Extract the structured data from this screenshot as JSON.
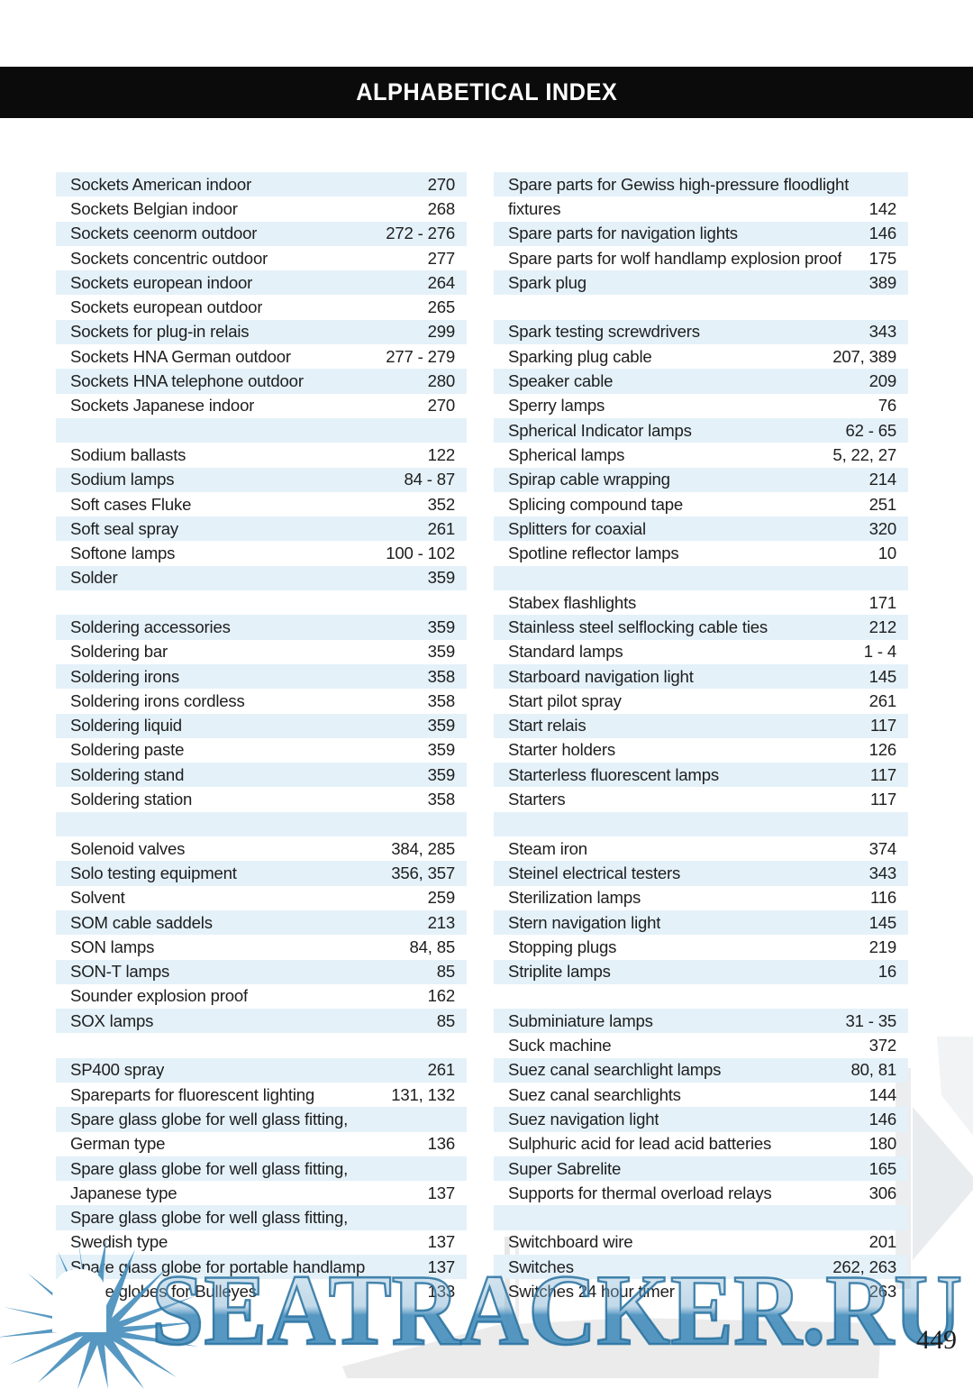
{
  "header": {
    "title": "ALPHABETICAL INDEX"
  },
  "page_number": "449",
  "watermark": {
    "text": "SEATRACKER.RU",
    "starburst_icon": "sun-starburst"
  },
  "colors": {
    "header_bg": "#0b0b0b",
    "stripe_blue": "#e4f1f9",
    "text": "#1e1e1e",
    "watermark_blue": "#4d92bf",
    "watermark_outline": "#28719f",
    "background_gray": "#ebedee"
  },
  "index": {
    "left_column": {
      "rows": [
        {
          "label": "Sockets American indoor",
          "pages": "270"
        },
        {
          "label": "Sockets Belgian indoor",
          "pages": "268"
        },
        {
          "label": "Sockets ceenorm outdoor",
          "pages": "272 - 276"
        },
        {
          "label": "Sockets concentric outdoor",
          "pages": "277"
        },
        {
          "label": "Sockets european indoor",
          "pages": "264"
        },
        {
          "label": "Sockets european outdoor",
          "pages": "265"
        },
        {
          "label": "Sockets for plug-in relais",
          "pages": "299"
        },
        {
          "label": "Sockets HNA German outdoor",
          "pages": "277 - 279"
        },
        {
          "label": "Sockets HNA telephone outdoor",
          "pages": "280"
        },
        {
          "label": "Sockets Japanese indoor",
          "pages": "270"
        },
        {
          "label": "",
          "pages": ""
        },
        {
          "label": "Sodium ballasts",
          "pages": "122"
        },
        {
          "label": "Sodium lamps",
          "pages": "84 - 87"
        },
        {
          "label": "Soft cases Fluke",
          "pages": "352"
        },
        {
          "label": "Soft seal spray",
          "pages": "261"
        },
        {
          "label": "Softone lamps",
          "pages": "100 - 102"
        },
        {
          "label": "Solder",
          "pages": "359"
        },
        {
          "label": "",
          "pages": ""
        },
        {
          "label": "Soldering accessories",
          "pages": "359"
        },
        {
          "label": "Soldering bar",
          "pages": "359"
        },
        {
          "label": "Soldering irons",
          "pages": "358"
        },
        {
          "label": "Soldering irons cordless",
          "pages": "358"
        },
        {
          "label": "Soldering liquid",
          "pages": "359"
        },
        {
          "label": "Soldering paste",
          "pages": "359"
        },
        {
          "label": "Soldering stand",
          "pages": "359"
        },
        {
          "label": "Soldering station",
          "pages": "358"
        },
        {
          "label": "",
          "pages": ""
        },
        {
          "label": "Solenoid valves",
          "pages": "384, 285"
        },
        {
          "label": "Solo testing equipment",
          "pages": "356, 357"
        },
        {
          "label": "Solvent",
          "pages": "259"
        },
        {
          "label": "SOM cable saddels",
          "pages": "213"
        },
        {
          "label": "SON lamps",
          "pages": "84, 85"
        },
        {
          "label": "SON-T lamps",
          "pages": "85"
        },
        {
          "label": "Sounder explosion proof",
          "pages": "162"
        },
        {
          "label": "SOX lamps",
          "pages": "85"
        },
        {
          "label": "",
          "pages": ""
        },
        {
          "label": "SP400 spray",
          "pages": "261"
        },
        {
          "label": "Spareparts for fluorescent lighting",
          "pages": "131, 132"
        },
        {
          "label": "Spare glass globe for well glass fitting,",
          "pages": ""
        },
        {
          "label": "German type",
          "pages": "136"
        },
        {
          "label": "Spare glass globe for well glass fitting,",
          "pages": ""
        },
        {
          "label": "Japanese type",
          "pages": "137"
        },
        {
          "label": "Spare glass globe for well glass fitting,",
          "pages": ""
        },
        {
          "label": "Swedish type",
          "pages": "137"
        },
        {
          "label": "Spare glass globe for portable handlamp",
          "pages": "137"
        },
        {
          "label": "Spare globes for Bulleyes",
          "pages": "133"
        }
      ]
    },
    "right_column": {
      "rows": [
        {
          "label": "Spare parts for Gewiss high-pressure floodlight",
          "pages": ""
        },
        {
          "label": "fixtures",
          "pages": "142"
        },
        {
          "label": "Spare parts for navigation lights",
          "pages": "146"
        },
        {
          "label": "Spare parts for wolf handlamp explosion proof",
          "pages": "175"
        },
        {
          "label": "Spark plug",
          "pages": "389"
        },
        {
          "label": "",
          "pages": ""
        },
        {
          "label": "Spark testing screwdrivers",
          "pages": "343"
        },
        {
          "label": "Sparking plug cable",
          "pages": "207, 389"
        },
        {
          "label": "Speaker cable",
          "pages": "209"
        },
        {
          "label": "Sperry lamps",
          "pages": "76"
        },
        {
          "label": "Spherical Indicator lamps",
          "pages": "62 - 65"
        },
        {
          "label": "Spherical lamps",
          "pages": "5, 22, 27"
        },
        {
          "label": "Spirap cable wrapping",
          "pages": "214"
        },
        {
          "label": "Splicing compound tape",
          "pages": "251"
        },
        {
          "label": "Splitters for coaxial",
          "pages": "320"
        },
        {
          "label": "Spotline reflector lamps",
          "pages": "10"
        },
        {
          "label": "",
          "pages": ""
        },
        {
          "label": "Stabex flashlights",
          "pages": "171"
        },
        {
          "label": "Stainless steel selflocking cable ties",
          "pages": "212"
        },
        {
          "label": "Standard lamps",
          "pages": "1 - 4"
        },
        {
          "label": "Starboard navigation light",
          "pages": "145"
        },
        {
          "label": "Start pilot spray",
          "pages": "261"
        },
        {
          "label": "Start relais",
          "pages": "117"
        },
        {
          "label": "Starter holders",
          "pages": "126"
        },
        {
          "label": "Starterless fluorescent lamps",
          "pages": "117"
        },
        {
          "label": "Starters",
          "pages": "117"
        },
        {
          "label": "",
          "pages": ""
        },
        {
          "label": "Steam iron",
          "pages": "374"
        },
        {
          "label": "Steinel electrical testers",
          "pages": "343"
        },
        {
          "label": "Sterilization lamps",
          "pages": "116"
        },
        {
          "label": "Stern navigation light",
          "pages": "145"
        },
        {
          "label": "Stopping plugs",
          "pages": "219"
        },
        {
          "label": "Striplite lamps",
          "pages": "16"
        },
        {
          "label": "",
          "pages": ""
        },
        {
          "label": "Subminiature lamps",
          "pages": "31 - 35"
        },
        {
          "label": "Suck machine",
          "pages": "372"
        },
        {
          "label": "Suez canal searchlight lamps",
          "pages": "80, 81"
        },
        {
          "label": "Suez canal searchlights",
          "pages": "144"
        },
        {
          "label": "Suez navigation light",
          "pages": "146"
        },
        {
          "label": "Sulphuric acid for lead acid batteries",
          "pages": "180"
        },
        {
          "label": "Super Sabrelite",
          "pages": "165"
        },
        {
          "label": "Supports for thermal overload relays",
          "pages": "306"
        },
        {
          "label": "",
          "pages": ""
        },
        {
          "label": "Switchboard wire",
          "pages": "201"
        },
        {
          "label": "Switches",
          "pages": "262, 263"
        },
        {
          "label": "Switches 24 hour timer",
          "pages": "263"
        }
      ]
    }
  }
}
